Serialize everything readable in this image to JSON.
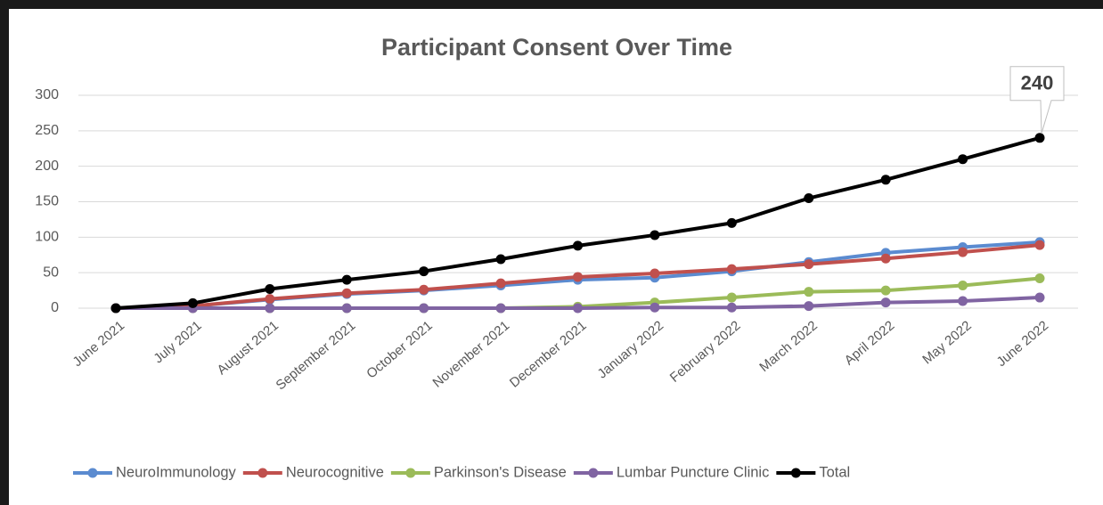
{
  "chart_data": {
    "type": "line",
    "title": "Participant Consent Over Time",
    "categories": [
      "June 2021",
      "July 2021",
      "August 2021",
      "September 2021",
      "October 2021",
      "November 2021",
      "December 2021",
      "January 2022",
      "February 2022",
      "March 2022",
      "April 2022",
      "May 2022",
      "June 2022"
    ],
    "series": [
      {
        "name": "NeuroImmunology",
        "color": "#5b8bd0",
        "values": [
          0,
          3,
          12,
          20,
          25,
          32,
          40,
          43,
          52,
          65,
          78,
          86,
          93
        ]
      },
      {
        "name": "Neurocognitive",
        "color": "#c0504d",
        "values": [
          0,
          3,
          13,
          21,
          26,
          35,
          44,
          49,
          55,
          62,
          70,
          79,
          89
        ]
      },
      {
        "name": "Parkinson's Disease",
        "color": "#9bbb59",
        "values": [
          0,
          0,
          0,
          0,
          0,
          0,
          2,
          8,
          15,
          23,
          25,
          32,
          42
        ]
      },
      {
        "name": "Lumbar Puncture Clinic",
        "color": "#8064a2",
        "values": [
          0,
          0,
          0,
          0,
          0,
          0,
          0,
          1,
          1,
          3,
          8,
          10,
          15
        ]
      },
      {
        "name": "Total",
        "color": "#000000",
        "values": [
          0,
          7,
          27,
          40,
          52,
          69,
          88,
          103,
          120,
          155,
          181,
          210,
          240
        ]
      }
    ],
    "ylim": [
      0,
      300
    ],
    "yticks": [
      0,
      50,
      100,
      150,
      200,
      250,
      300
    ],
    "grid": true,
    "legend": "bottom"
  }
}
